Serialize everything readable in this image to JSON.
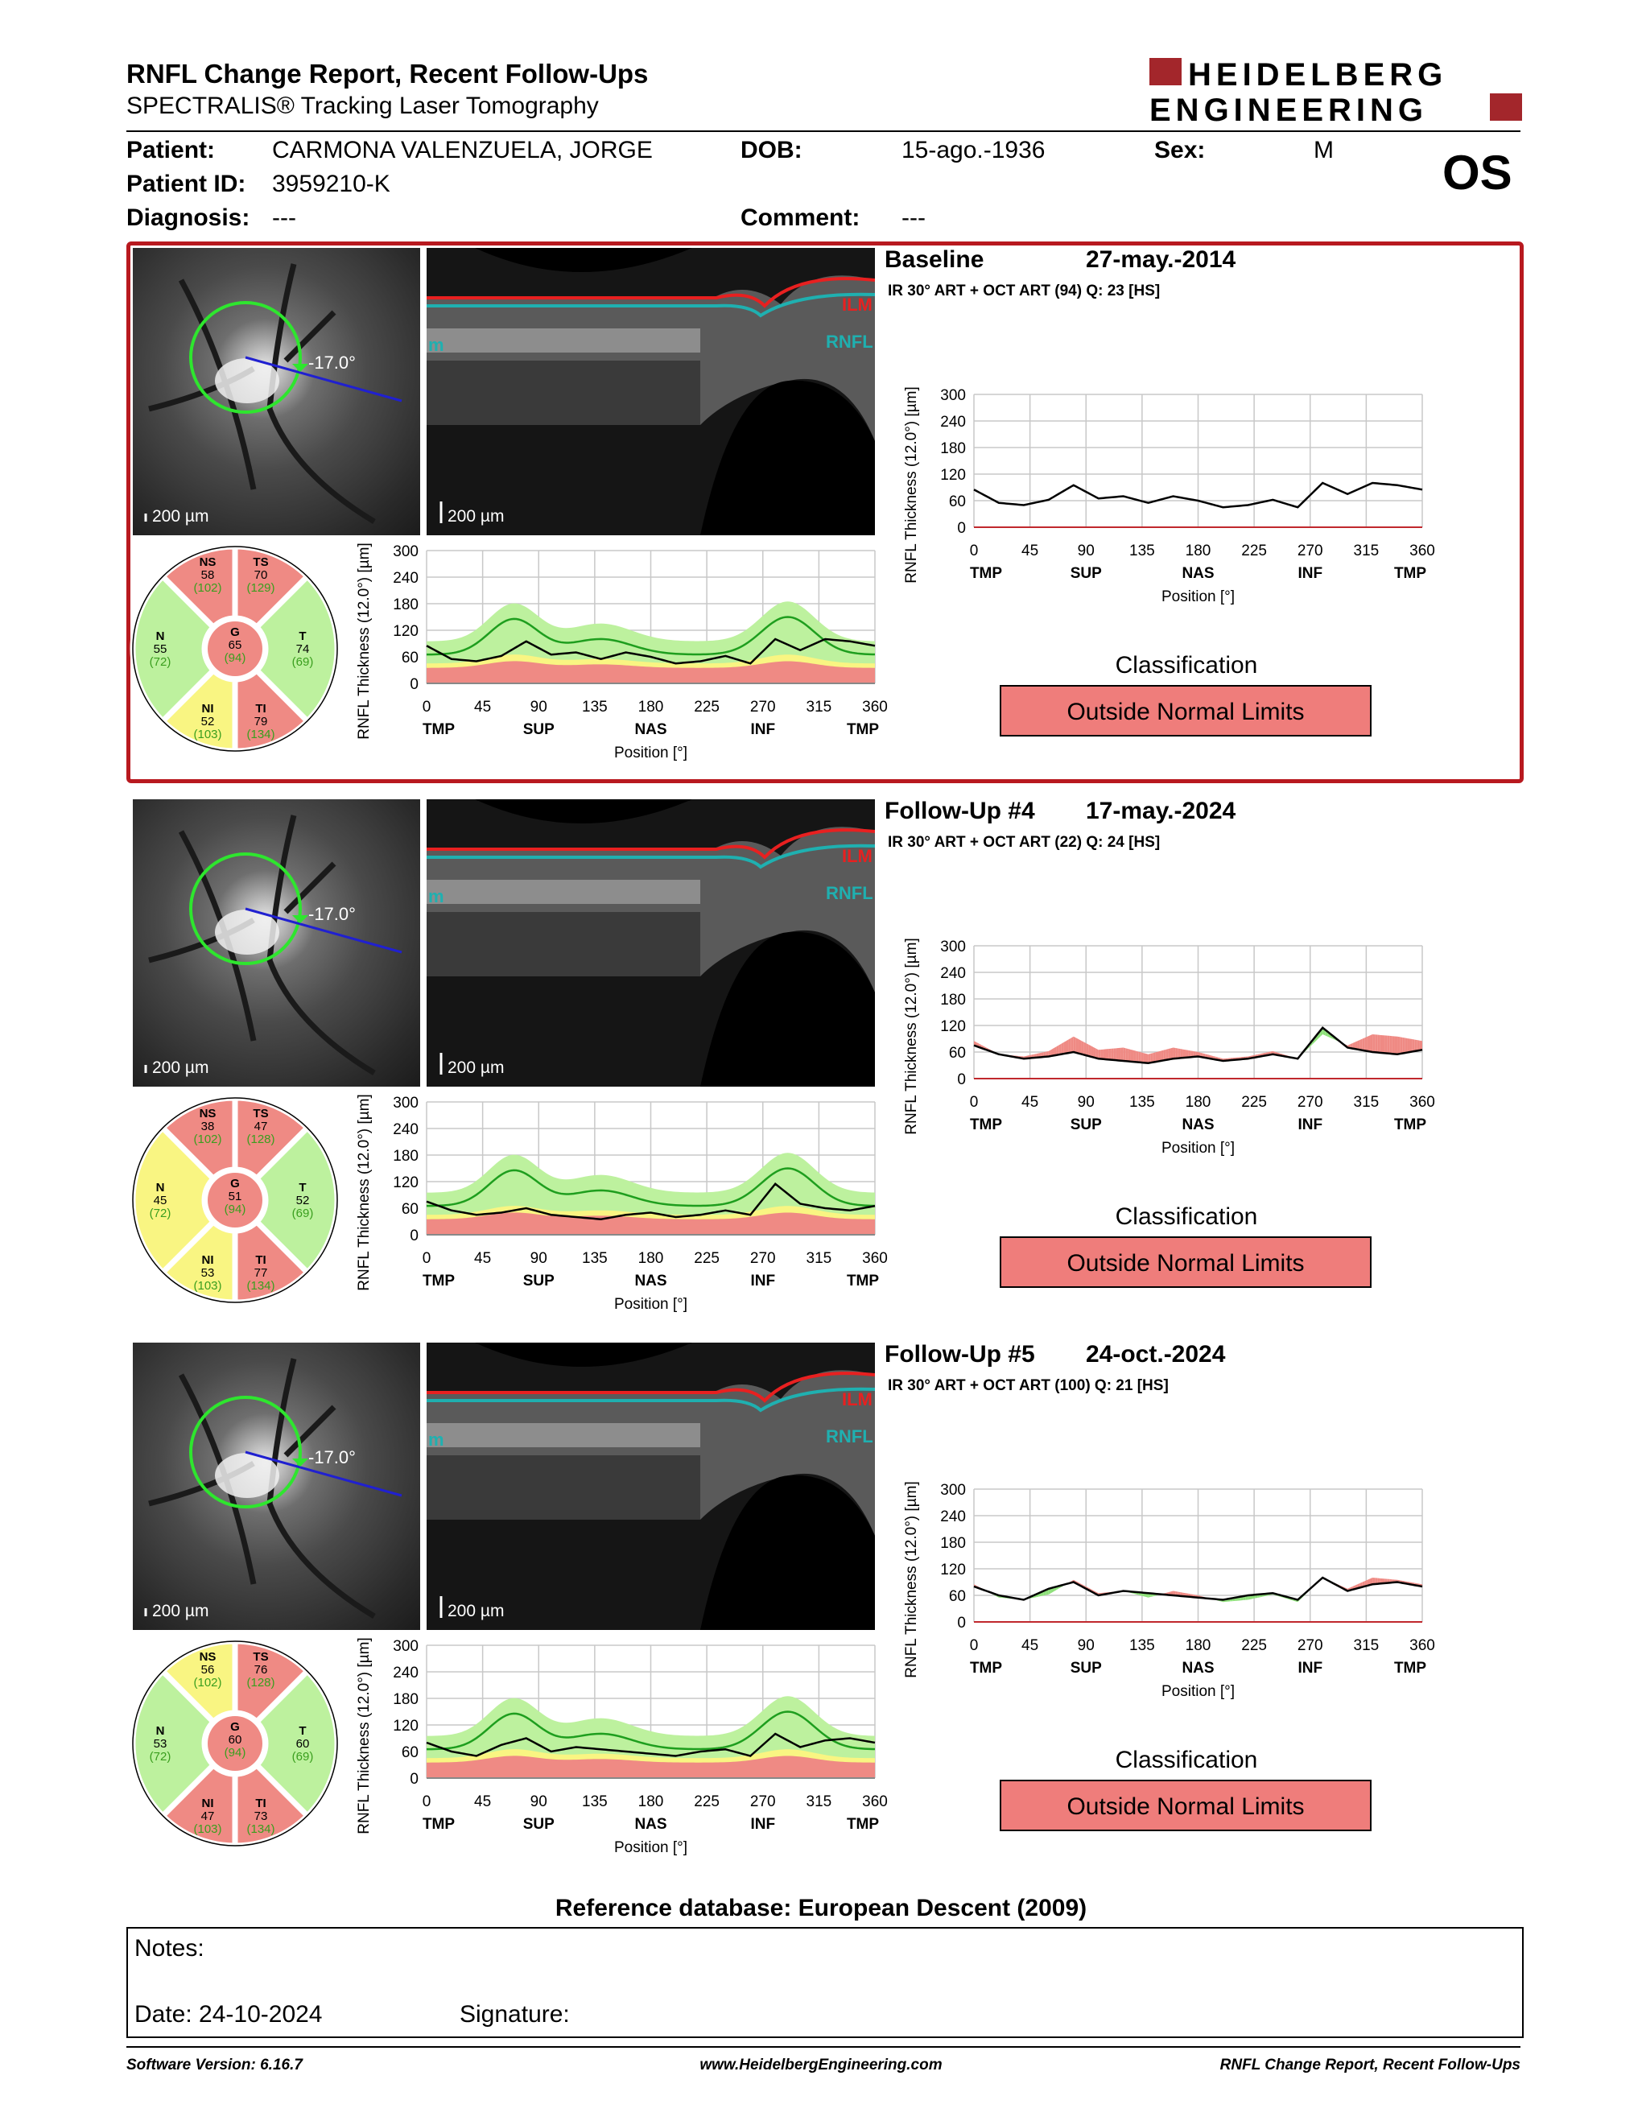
{
  "header": {
    "title": "RNFL Change Report, Recent Follow-Ups",
    "subtitle": "SPECTRALIS® Tracking Laser Tomography",
    "logo_line1": "HEIDELBERG",
    "logo_line2": "ENGINEERING",
    "eye": "OS"
  },
  "patient": {
    "patient_label": "Patient:",
    "patient": "CARMONA VALENZUELA, JORGE",
    "dob_label": "DOB:",
    "dob": "15-ago.-1936",
    "sex_label": "Sex:",
    "sex": "M",
    "id_label": "Patient ID:",
    "id": "3959210-K",
    "diag_label": "Diagnosis:",
    "diag": "---",
    "comment_label": "Comment:",
    "comment": "---"
  },
  "common": {
    "scale": "200 µm",
    "angle": "-17.0°",
    "ilm": "ILM",
    "rnfl": "RNFL",
    "ilm_left": "m",
    "ylabel": "RNFL Thickness (12.0°) [µm]",
    "xlabel": "Position [°]",
    "yticks": [
      "300",
      "240",
      "180",
      "120",
      "60",
      "0"
    ],
    "xticks": [
      "0",
      "45",
      "90",
      "135",
      "180",
      "225",
      "270",
      "315",
      "360"
    ],
    "xcats": [
      "TMP",
      "SUP",
      "NAS",
      "INF",
      "TMP"
    ],
    "class_title": "Classification"
  },
  "scans": [
    {
      "title": "Baseline",
      "date": "27-may.-2014",
      "info": "IR 30° ART + OCT ART (94) Q: 23 [HS]",
      "classification": "Outside Normal Limits",
      "sectors": {
        "NS": [
          "NS",
          "58",
          "(102)"
        ],
        "TS": [
          "TS",
          "70",
          "(129)"
        ],
        "N": [
          "N",
          "55",
          "(72)"
        ],
        "G": [
          "G",
          "65",
          "(94)"
        ],
        "T": [
          "T",
          "74",
          "(69)"
        ],
        "NI": [
          "NI",
          "52",
          "(103)"
        ],
        "TI": [
          "TI",
          "79",
          "(134)"
        ]
      }
    },
    {
      "title": "Follow-Up #4",
      "date": "17-may.-2024",
      "info": "IR 30° ART + OCT ART (22) Q: 24 [HS]",
      "classification": "Outside Normal Limits",
      "sectors": {
        "NS": [
          "NS",
          "38",
          "(102)"
        ],
        "TS": [
          "TS",
          "47",
          "(128)"
        ],
        "N": [
          "N",
          "45",
          "(72)"
        ],
        "G": [
          "G",
          "51",
          "(94)"
        ],
        "T": [
          "T",
          "52",
          "(69)"
        ],
        "NI": [
          "NI",
          "53",
          "(103)"
        ],
        "TI": [
          "TI",
          "77",
          "(134)"
        ]
      }
    },
    {
      "title": "Follow-Up #5",
      "date": "24-oct.-2024",
      "info": "IR 30° ART + OCT ART (100) Q: 21 [HS]",
      "classification": "Outside Normal Limits",
      "sectors": {
        "NS": [
          "NS",
          "56",
          "(102)"
        ],
        "TS": [
          "TS",
          "76",
          "(128)"
        ],
        "N": [
          "N",
          "53",
          "(72)"
        ],
        "G": [
          "G",
          "60",
          "(94)"
        ],
        "T": [
          "T",
          "60",
          "(69)"
        ],
        "NI": [
          "NI",
          "47",
          "(103)"
        ],
        "TI": [
          "TI",
          "73",
          "(134)"
        ]
      }
    }
  ],
  "sector_colors": {
    "NS": [
      "#ef8a84",
      "#ef8a84",
      "#f9f582"
    ],
    "TS": [
      "#ef8a84",
      "#ef8a84",
      "#ef8a84"
    ],
    "N": [
      "#bdf19e",
      "#f9f582",
      "#bdf19e"
    ],
    "G": [
      "#ef8a84",
      "#ef8a84",
      "#ef8a84"
    ],
    "T": [
      "#bdf19e",
      "#bdf19e",
      "#bdf19e"
    ],
    "NI": [
      "#f9f582",
      "#f9f582",
      "#ef8a84"
    ],
    "TI": [
      "#ef8a84",
      "#ef8a84",
      "#ef8a84"
    ]
  },
  "reference": "Reference database: European Descent (2009)",
  "notes": {
    "notes_label": "Notes:",
    "date_label": "Date: 24-10-2024",
    "signature_label": "Signature:"
  },
  "footer": {
    "left": "Software Version: 6.16.7",
    "center": "www.HeidelbergEngineering.com",
    "right": "RNFL Change Report, Recent Follow-Ups"
  },
  "chart_data": [
    {
      "type": "line",
      "title": "",
      "xlabel": "Position [°]",
      "ylabel": "RNFL Thickness (12.0°) [µm]",
      "xlim": [
        0,
        360
      ],
      "ylim": [
        0,
        300
      ],
      "x": [
        0,
        20,
        40,
        60,
        80,
        100,
        120,
        140,
        160,
        180,
        200,
        220,
        240,
        260,
        280,
        300,
        320,
        340,
        360
      ],
      "series": [
        {
          "name": "",
          "values": [
            85,
            55,
            50,
            62,
            95,
            65,
            70,
            55,
            70,
            60,
            45,
            50,
            62,
            45,
            100,
            75,
            100,
            95,
            85
          ]
        }
      ]
    },
    {
      "type": "line",
      "title": "",
      "xlabel": "Position [°]",
      "ylabel": "RNFL Thickness (12.0°) [µm]",
      "xlim": [
        0,
        360
      ],
      "ylim": [
        0,
        300
      ],
      "x": [
        0,
        20,
        40,
        60,
        80,
        100,
        120,
        140,
        160,
        180,
        200,
        220,
        240,
        260,
        280,
        300,
        320,
        340,
        360
      ],
      "series": [
        {
          "name": "",
          "values": [
            75,
            55,
            45,
            50,
            60,
            45,
            40,
            35,
            45,
            50,
            40,
            45,
            55,
            45,
            115,
            70,
            60,
            55,
            65
          ]
        }
      ]
    },
    {
      "type": "line",
      "title": "",
      "xlabel": "Position [°]",
      "ylabel": "RNFL Thickness (12.0°) [µm]",
      "xlim": [
        0,
        360
      ],
      "ylim": [
        0,
        300
      ],
      "x": [
        0,
        20,
        40,
        60,
        80,
        100,
        120,
        140,
        160,
        180,
        200,
        220,
        240,
        260,
        280,
        300,
        320,
        340,
        360
      ],
      "series": [
        {
          "name": "",
          "values": [
            80,
            60,
            50,
            75,
            90,
            60,
            70,
            65,
            60,
            55,
            50,
            60,
            65,
            50,
            100,
            70,
            85,
            90,
            80
          ]
        }
      ]
    }
  ]
}
